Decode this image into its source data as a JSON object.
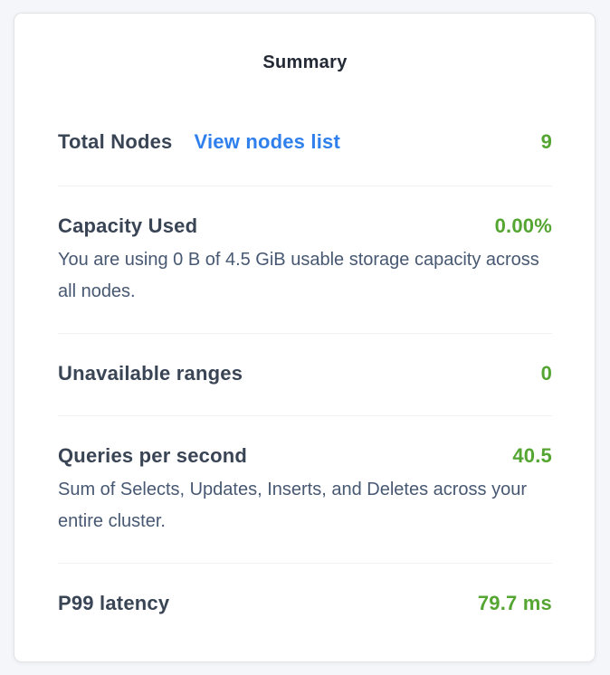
{
  "page": {
    "background_color": "#f4f6fa"
  },
  "card": {
    "title": "Summary",
    "background_color": "#ffffff",
    "border_color": "#e4e4e6"
  },
  "colors": {
    "title_text": "#242a35",
    "label_text": "#394455",
    "description_text": "#475872",
    "value_green": "#55a532",
    "link_blue": "#2f80ed",
    "divider": "#f0f1f3"
  },
  "stats": [
    {
      "id": "total-nodes",
      "label": "Total Nodes",
      "link": "View nodes list",
      "value": "9"
    },
    {
      "id": "capacity-used",
      "label": "Capacity Used",
      "value": "0.00%",
      "description": "You are using 0 B of 4.5 GiB usable storage capacity across all nodes."
    },
    {
      "id": "unavailable-ranges",
      "label": "Unavailable ranges",
      "value": "0"
    },
    {
      "id": "queries-per-second",
      "label": "Queries per second",
      "value": "40.5",
      "description": "Sum of Selects, Updates, Inserts, and Deletes across your entire cluster."
    },
    {
      "id": "p99-latency",
      "label": "P99 latency",
      "value": "79.7 ms"
    }
  ]
}
